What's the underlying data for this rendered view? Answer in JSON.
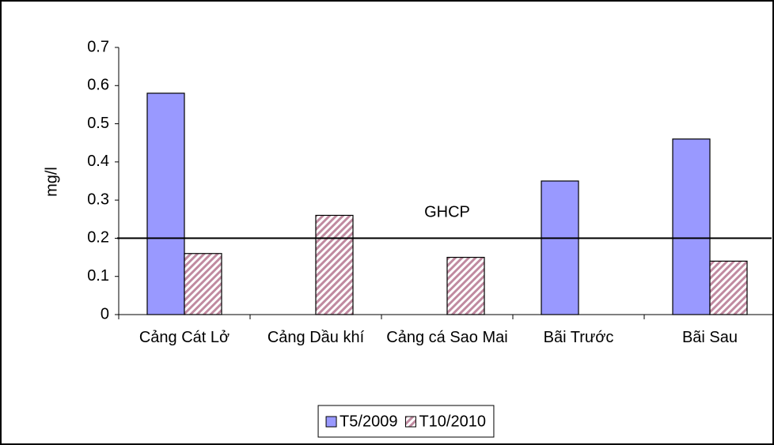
{
  "chart_data": {
    "type": "bar",
    "y_label": "mg/l",
    "categories": [
      "Cảng Cát Lở",
      "Cảng Dầu khí",
      "Cảng cá Sao Mai",
      "Bãi Trước",
      "Bãi Sau"
    ],
    "series": [
      {
        "name": "T5/2009",
        "color": "#9999ff",
        "values": [
          0.58,
          null,
          null,
          0.35,
          0.46
        ]
      },
      {
        "name": "T10/2010",
        "color": "#993366",
        "hatch": true,
        "values": [
          0.16,
          0.26,
          0.15,
          null,
          0.14
        ]
      }
    ],
    "ylim": [
      0,
      0.7
    ],
    "yticks": [
      0,
      0.1,
      0.2,
      0.3,
      0.4,
      0.5,
      0.6,
      0.7
    ],
    "reference_lines": [
      {
        "value": 0.2,
        "label": "GHCP"
      }
    ],
    "legend": "bottom"
  }
}
